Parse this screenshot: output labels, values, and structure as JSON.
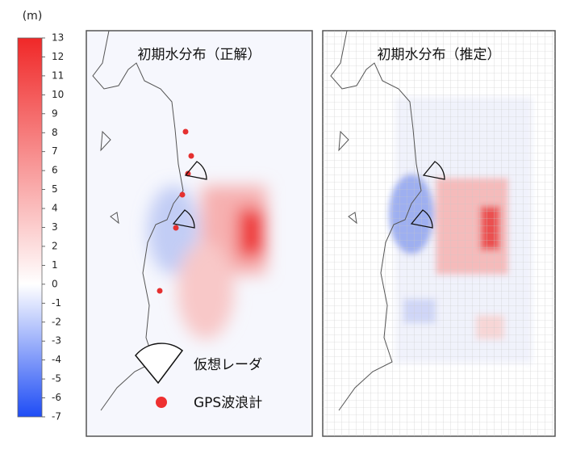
{
  "colorbar": {
    "unit": "(m)",
    "range": [
      -7,
      13
    ],
    "ticks": [
      13,
      12,
      11,
      10,
      9,
      8,
      7,
      6,
      5,
      4,
      3,
      2,
      1,
      0,
      -1,
      -2,
      -3,
      -4,
      -5,
      -6,
      -7
    ],
    "colors": {
      "max": "#f02828",
      "zero": "#ffffff",
      "min": "#1e4cf5"
    }
  },
  "panels": [
    {
      "title": "初期水分布（正解）"
    },
    {
      "title": "初期水分布（推定）"
    }
  ],
  "legend": [
    {
      "label": "仮想レーダ"
    },
    {
      "label": "GPS波浪計"
    }
  ]
}
